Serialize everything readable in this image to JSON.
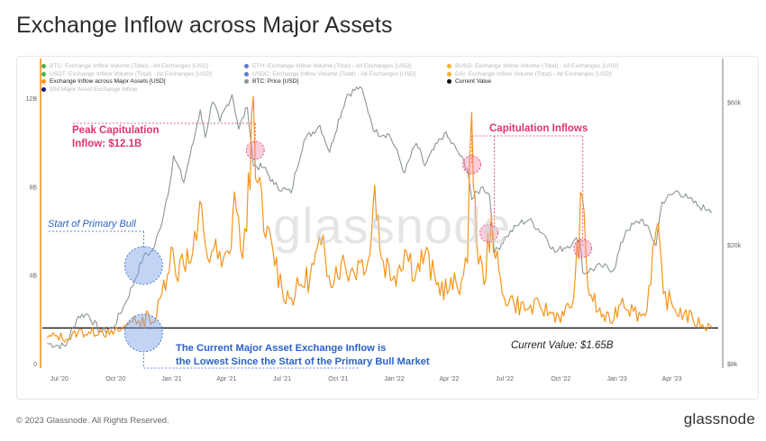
{
  "page": {
    "title": "Exchange Inflow across Major Assets",
    "copyright": "© 2023 Glassnode. All Rights Reserved.",
    "brand": "glassnode",
    "watermark": "glassnode"
  },
  "legend": [
    {
      "label": "BTC: Exchange Inflow Volume (Total) - All Exchanges [USD]",
      "color": "#4caf50",
      "active": false
    },
    {
      "label": "ETH: Exchange Inflow Volume (Total) - All Exchanges [USD]",
      "color": "#5b7fd6",
      "active": false
    },
    {
      "label": "BUSD: Exchange Inflow Volume (Total) - All Exchanges [USD]",
      "color": "#f0b429",
      "active": false
    },
    {
      "label": "USDT: Exchange Inflow Volume (Total) - All Exchanges [USD]",
      "color": "#4caf50",
      "active": false
    },
    {
      "label": "USDC: Exchange Inflow Volume (Total) - All Exchanges [USD]",
      "color": "#5b7fd6",
      "active": false
    },
    {
      "label": "DAI: Exchange Inflow Volume (Total) - All Exchanges [USD]",
      "color": "#f0b429",
      "active": false
    },
    {
      "label": "Exchange Inflow across Major Assets [USD]",
      "color": "#f7931a",
      "active": true
    },
    {
      "label": "BTC: Price [USD]",
      "color": "#8a9597",
      "active": true
    },
    {
      "label": "Current Value",
      "color": "#111111",
      "active": true
    },
    {
      "label": "30d Major Asset Exchange Inflow",
      "color": "#1a1a8c",
      "active": false
    }
  ],
  "annotations": {
    "peak": [
      "Peak Capitulation",
      "Inflow: $12.1B"
    ],
    "capitulation": "Capitulation Inflows",
    "bull": "Start of Primary Bull",
    "lowest": [
      "The Current Major Asset Exchange Inflow is",
      "the Lowest Since the Start of the Primary Bull Market"
    ],
    "current": "Current Value: $1.65B"
  },
  "chart_data": {
    "type": "line",
    "x_tick_labels": [
      "Jul '20",
      "Oct '20",
      "Jan '21",
      "Apr '21",
      "Jul '21",
      "Oct '21",
      "Jan '22",
      "Apr '22",
      "Jul '22",
      "Oct '22",
      "Jan '23",
      "Apr '23"
    ],
    "y_left_tick_labels": [
      "0",
      "4B",
      "8B",
      "12B"
    ],
    "y_right_tick_labels": [
      "$8k",
      "$20k",
      "$60k"
    ],
    "y_left_range": [
      0,
      13.5
    ],
    "y_left_unit": "B USD",
    "y_right_scale": "log",
    "y_right_range": [
      8,
      80
    ],
    "grid": false,
    "current_value": 1.65,
    "series": [
      {
        "name": "Exchange Inflow across Major Assets [USD]",
        "color": "#f7931a",
        "axis": "left",
        "points": [
          [
            "2020-06-15",
            1.2
          ],
          [
            "2020-07-01",
            1.3
          ],
          [
            "2020-07-20",
            1.15
          ],
          [
            "2020-08-05",
            1.5
          ],
          [
            "2020-08-25",
            1.4
          ],
          [
            "2020-09-10",
            1.6
          ],
          [
            "2020-09-25",
            1.35
          ],
          [
            "2020-10-10",
            1.5
          ],
          [
            "2020-10-25",
            1.8
          ],
          [
            "2020-11-05",
            2.2
          ],
          [
            "2020-11-15",
            1.7
          ],
          [
            "2020-11-28",
            2.3
          ],
          [
            "2020-12-08",
            1.9
          ],
          [
            "2020-12-20",
            3.2
          ],
          [
            "2021-01-04",
            5.3
          ],
          [
            "2021-01-12",
            4.0
          ],
          [
            "2021-01-22",
            5.0
          ],
          [
            "2021-02-05",
            4.6
          ],
          [
            "2021-02-15",
            5.6
          ],
          [
            "2021-02-23",
            7.2
          ],
          [
            "2021-03-05",
            4.8
          ],
          [
            "2021-03-15",
            5.2
          ],
          [
            "2021-03-28",
            4.4
          ],
          [
            "2021-04-10",
            5.0
          ],
          [
            "2021-04-18",
            7.8
          ],
          [
            "2021-04-28",
            5.2
          ],
          [
            "2021-05-08",
            6.0
          ],
          [
            "2021-05-19",
            12.1
          ],
          [
            "2021-05-26",
            8.2
          ],
          [
            "2021-06-05",
            6.0
          ],
          [
            "2021-06-20",
            5.2
          ],
          [
            "2021-07-05",
            3.4
          ],
          [
            "2021-07-20",
            3.0
          ],
          [
            "2021-08-05",
            3.6
          ],
          [
            "2021-08-20",
            4.0
          ],
          [
            "2021-09-07",
            5.4
          ],
          [
            "2021-09-20",
            4.0
          ],
          [
            "2021-10-10",
            4.6
          ],
          [
            "2021-10-25",
            4.2
          ],
          [
            "2021-11-10",
            4.6
          ],
          [
            "2021-11-26",
            5.0
          ],
          [
            "2021-12-04",
            8.1
          ],
          [
            "2021-12-15",
            4.8
          ],
          [
            "2022-01-05",
            4.0
          ],
          [
            "2022-01-22",
            5.2
          ],
          [
            "2022-02-10",
            4.2
          ],
          [
            "2022-02-24",
            5.0
          ],
          [
            "2022-03-15",
            3.6
          ],
          [
            "2022-04-05",
            3.4
          ],
          [
            "2022-04-25",
            3.8
          ],
          [
            "2022-05-05",
            4.6
          ],
          [
            "2022-05-12",
            11.4
          ],
          [
            "2022-05-20",
            5.5
          ],
          [
            "2022-06-01",
            3.6
          ],
          [
            "2022-06-13",
            6.8
          ],
          [
            "2022-06-20",
            4.8
          ],
          [
            "2022-07-01",
            3.2
          ],
          [
            "2022-07-20",
            2.8
          ],
          [
            "2022-08-10",
            2.5
          ],
          [
            "2022-09-01",
            2.6
          ],
          [
            "2022-09-20",
            2.3
          ],
          [
            "2022-10-10",
            2.2
          ],
          [
            "2022-10-26",
            3.0
          ],
          [
            "2022-11-09",
            7.6
          ],
          [
            "2022-11-18",
            3.6
          ],
          [
            "2022-12-05",
            2.4
          ],
          [
            "2022-12-25",
            1.9
          ],
          [
            "2023-01-14",
            3.0
          ],
          [
            "2023-02-01",
            2.4
          ],
          [
            "2023-02-20",
            2.2
          ],
          [
            "2023-03-11",
            6.2
          ],
          [
            "2023-03-22",
            3.2
          ],
          [
            "2023-04-10",
            2.5
          ],
          [
            "2023-04-25",
            2.3
          ],
          [
            "2023-05-10",
            2.0
          ],
          [
            "2023-05-25",
            1.8
          ],
          [
            "2023-06-10",
            1.65
          ]
        ]
      },
      {
        "name": "BTC: Price [USD]",
        "color": "#8a9597",
        "axis": "right",
        "unit": "k USD",
        "points": [
          [
            "2020-06-15",
            9.4
          ],
          [
            "2020-07-15",
            9.2
          ],
          [
            "2020-08-05",
            11.6
          ],
          [
            "2020-08-20",
            11.8
          ],
          [
            "2020-09-10",
            10.3
          ],
          [
            "2020-10-01",
            10.6
          ],
          [
            "2020-10-21",
            12.8
          ],
          [
            "2020-11-05",
            15.2
          ],
          [
            "2020-11-20",
            18.4
          ],
          [
            "2020-12-05",
            19.2
          ],
          [
            "2020-12-18",
            23.0
          ],
          [
            "2021-01-02",
            32.0
          ],
          [
            "2021-01-08",
            40.0
          ],
          [
            "2021-01-25",
            32.5
          ],
          [
            "2021-02-10",
            44.5
          ],
          [
            "2021-02-21",
            57.0
          ],
          [
            "2021-03-01",
            46.0
          ],
          [
            "2021-03-13",
            60.5
          ],
          [
            "2021-03-25",
            52.0
          ],
          [
            "2021-04-14",
            64.0
          ],
          [
            "2021-04-25",
            49.0
          ],
          [
            "2021-05-09",
            58.0
          ],
          [
            "2021-05-19",
            37.0
          ],
          [
            "2021-06-05",
            36.5
          ],
          [
            "2021-06-22",
            32.0
          ],
          [
            "2021-07-20",
            30.0
          ],
          [
            "2021-08-10",
            45.0
          ],
          [
            "2021-09-05",
            50.5
          ],
          [
            "2021-09-21",
            41.0
          ],
          [
            "2021-10-20",
            64.0
          ],
          [
            "2021-11-10",
            68.0
          ],
          [
            "2021-11-26",
            54.0
          ],
          [
            "2021-12-04",
            48.0
          ],
          [
            "2021-12-28",
            47.0
          ],
          [
            "2022-01-22",
            35.0
          ],
          [
            "2022-02-10",
            44.0
          ],
          [
            "2022-02-24",
            37.0
          ],
          [
            "2022-03-28",
            47.5
          ],
          [
            "2022-04-20",
            41.0
          ],
          [
            "2022-05-05",
            36.0
          ],
          [
            "2022-05-12",
            28.5
          ],
          [
            "2022-05-30",
            31.5
          ],
          [
            "2022-06-10",
            29.5
          ],
          [
            "2022-06-18",
            18.8
          ],
          [
            "2022-07-08",
            21.5
          ],
          [
            "2022-07-30",
            23.8
          ],
          [
            "2022-08-14",
            24.4
          ],
          [
            "2022-09-10",
            21.5
          ],
          [
            "2022-09-25",
            19.0
          ],
          [
            "2022-10-25",
            20.5
          ],
          [
            "2022-11-05",
            21.2
          ],
          [
            "2022-11-10",
            16.2
          ],
          [
            "2022-12-10",
            17.1
          ],
          [
            "2022-12-31",
            16.6
          ],
          [
            "2023-01-20",
            22.5
          ],
          [
            "2023-02-16",
            24.5
          ],
          [
            "2023-03-10",
            20.0
          ],
          [
            "2023-03-20",
            28.0
          ],
          [
            "2023-04-14",
            30.5
          ],
          [
            "2023-05-01",
            28.8
          ],
          [
            "2023-05-20",
            27.0
          ],
          [
            "2023-06-05",
            26.5
          ],
          [
            "2023-06-10",
            26.0
          ]
        ]
      }
    ]
  }
}
